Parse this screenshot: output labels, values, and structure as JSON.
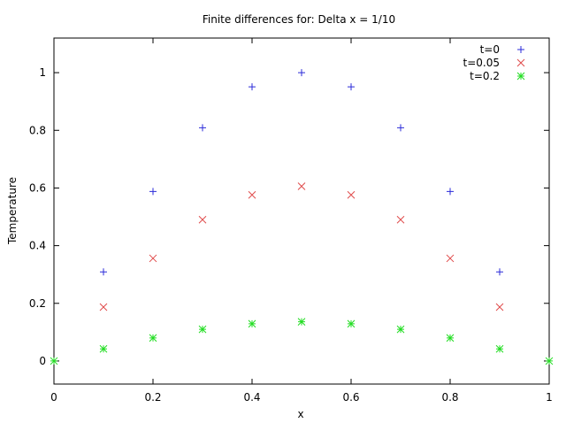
{
  "chart_data": {
    "type": "scatter",
    "title": "Finite differences for:  Delta x = 1/10",
    "xlabel": "x",
    "ylabel": "Temperature",
    "xlim": [
      0,
      1
    ],
    "ylim": [
      -0.08,
      1.12
    ],
    "x_ticks": [
      "0",
      "0.2",
      "0.4",
      "0.6",
      "0.8",
      "1"
    ],
    "y_ticks": [
      "0",
      "0.2",
      "0.4",
      "0.6",
      "0.8",
      "1"
    ],
    "grid": false,
    "legend_position": "top-right",
    "series": [
      {
        "name": "t=0",
        "marker": "plus",
        "color": "#2b2bd9",
        "x": [
          0.1,
          0.2,
          0.3,
          0.4,
          0.5,
          0.6,
          0.7,
          0.8,
          0.9
        ],
        "y": [
          0.309,
          0.588,
          0.809,
          0.951,
          1.0,
          0.951,
          0.809,
          0.588,
          0.309
        ]
      },
      {
        "name": "t=0.05",
        "marker": "cross",
        "color": "#e04b4b",
        "x": [
          0.1,
          0.2,
          0.3,
          0.4,
          0.5,
          0.6,
          0.7,
          0.8,
          0.9
        ],
        "y": [
          0.187,
          0.356,
          0.49,
          0.576,
          0.606,
          0.576,
          0.49,
          0.356,
          0.187
        ]
      },
      {
        "name": "t=0.2",
        "marker": "star",
        "color": "#22dd22",
        "x": [
          0.0,
          0.1,
          0.2,
          0.3,
          0.4,
          0.5,
          0.6,
          0.7,
          0.8,
          0.9,
          1.0
        ],
        "y": [
          0.0,
          0.042,
          0.08,
          0.11,
          0.129,
          0.136,
          0.129,
          0.11,
          0.08,
          0.042,
          0.0
        ]
      }
    ]
  }
}
